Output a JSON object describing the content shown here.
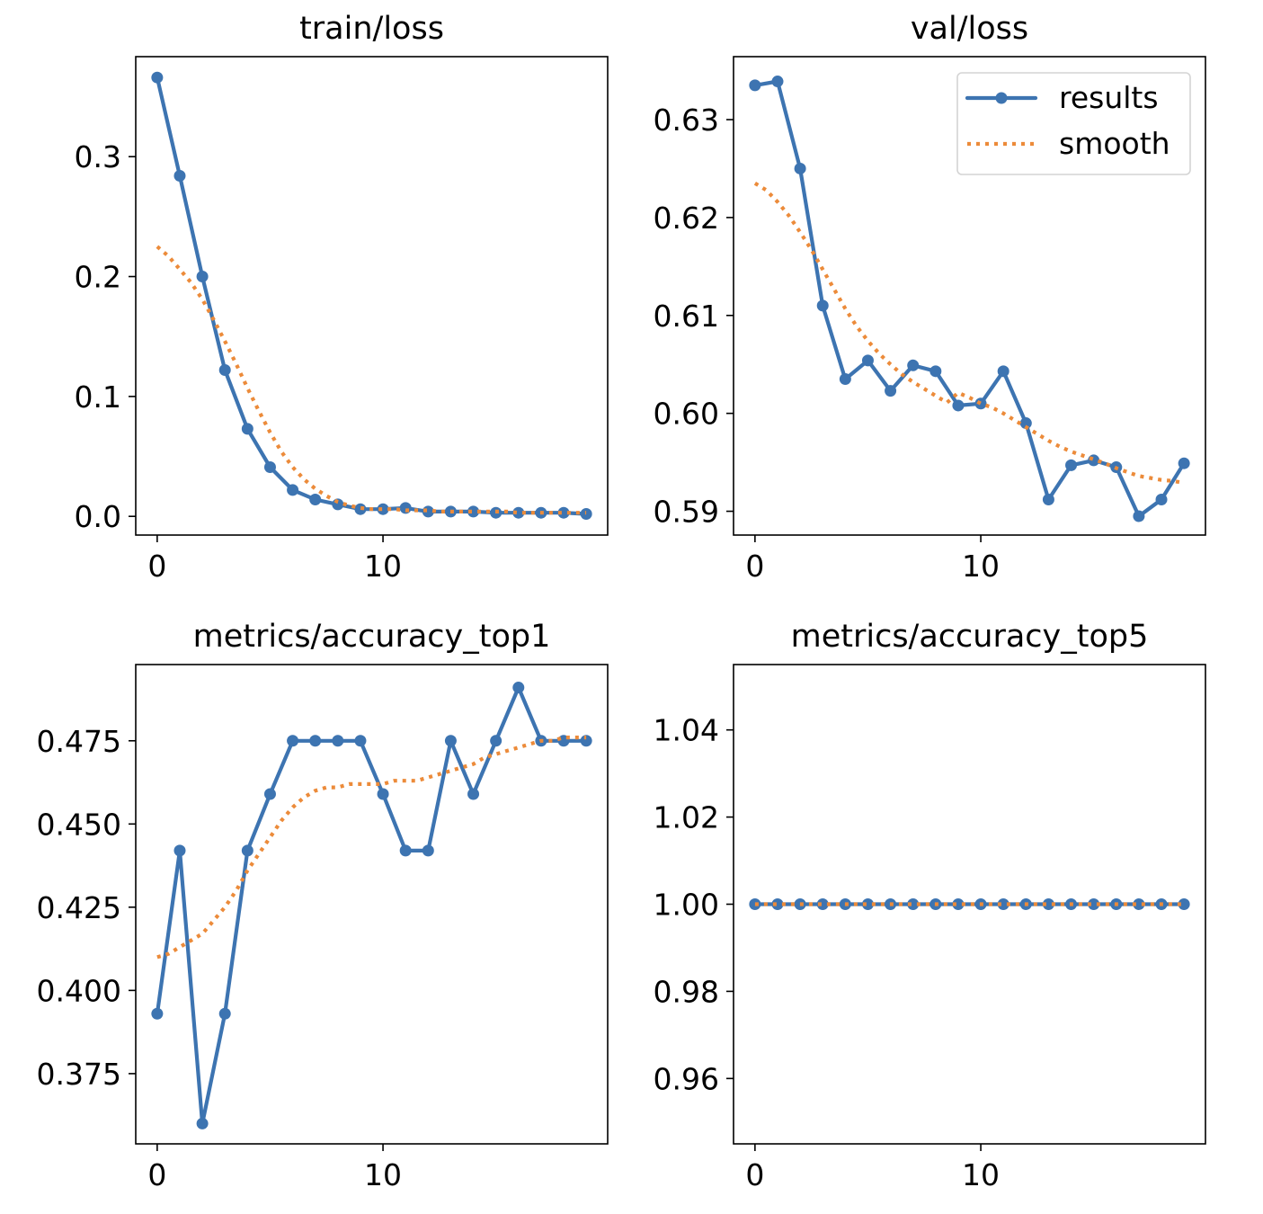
{
  "colors": {
    "results": "#3d74b1",
    "smooth": "#ec8b3a",
    "axis": "#000000",
    "background": "#ffffff"
  },
  "legend": {
    "results_label": "results",
    "smooth_label": "smooth",
    "placement": "top-right"
  },
  "chart_data": [
    {
      "type": "line",
      "title": "train/loss",
      "xlabel": "",
      "ylabel": "",
      "xlim": [
        -0.95,
        19.95
      ],
      "ylim": [
        -0.0156,
        0.3834
      ],
      "xticks": [
        0,
        10
      ],
      "xtick_labels": [
        "0",
        "10"
      ],
      "yticks": [
        0.0,
        0.1,
        0.2,
        0.3
      ],
      "ytick_labels": [
        "0.0",
        "0.1",
        "0.2",
        "0.3"
      ],
      "grid": false,
      "legend": false,
      "series": [
        {
          "name": "results",
          "x": [
            0,
            1,
            2,
            3,
            4,
            5,
            6,
            7,
            8,
            9,
            10,
            11,
            12,
            13,
            14,
            15,
            16,
            17,
            18,
            19
          ],
          "values": [
            0.366,
            0.284,
            0.2,
            0.122,
            0.073,
            0.041,
            0.022,
            0.014,
            0.01,
            0.006,
            0.006,
            0.007,
            0.004,
            0.004,
            0.004,
            0.003,
            0.003,
            0.003,
            0.003,
            0.002
          ]
        },
        {
          "name": "smooth",
          "x": [
            0,
            0.5,
            1,
            1.5,
            2,
            2.5,
            3,
            3.5,
            4,
            4.5,
            5,
            5.5,
            6,
            6.5,
            7,
            7.5,
            8,
            8.5,
            9,
            9.5,
            10,
            10.5,
            11,
            11.5,
            12,
            12.5,
            13,
            13.5,
            14,
            14.5,
            15,
            15.5,
            16,
            16.5,
            17,
            17.5,
            18,
            18.5,
            19
          ],
          "values": [
            0.225,
            0.217,
            0.206,
            0.195,
            0.181,
            0.164,
            0.146,
            0.127,
            0.107,
            0.088,
            0.07,
            0.054,
            0.041,
            0.031,
            0.023,
            0.017,
            0.012,
            0.009,
            0.007,
            0.006,
            0.006,
            0.006,
            0.005,
            0.005,
            0.005,
            0.004,
            0.004,
            0.004,
            0.004,
            0.004,
            0.004,
            0.004,
            0.003,
            0.003,
            0.003,
            0.003,
            0.003,
            0.003,
            0.003
          ]
        }
      ]
    },
    {
      "type": "line",
      "title": "val/loss",
      "xlabel": "",
      "ylabel": "",
      "xlim": [
        -0.95,
        19.95
      ],
      "ylim": [
        0.58757,
        0.63643
      ],
      "xticks": [
        0,
        10
      ],
      "xtick_labels": [
        "0",
        "10"
      ],
      "yticks": [
        0.59,
        0.6,
        0.61,
        0.62,
        0.63
      ],
      "ytick_labels": [
        "0.59",
        "0.60",
        "0.61",
        "0.62",
        "0.63"
      ],
      "grid": false,
      "legend": true,
      "series": [
        {
          "name": "results",
          "x": [
            0,
            1,
            2,
            3,
            4,
            5,
            6,
            7,
            8,
            9,
            10,
            11,
            12,
            13,
            14,
            15,
            16,
            17,
            18,
            19
          ],
          "values": [
            0.6335,
            0.6339,
            0.625,
            0.611,
            0.6035,
            0.6054,
            0.6023,
            0.6049,
            0.6043,
            0.6008,
            0.601,
            0.6043,
            0.599,
            0.5912,
            0.5947,
            0.5952,
            0.5945,
            0.5895,
            0.5912,
            0.5949
          ]
        },
        {
          "name": "smooth",
          "x": [
            0,
            0.5,
            1,
            1.5,
            2,
            2.5,
            3,
            3.5,
            4,
            4.5,
            5,
            5.5,
            6,
            6.5,
            7,
            7.5,
            8,
            8.5,
            9,
            9.5,
            10,
            10.5,
            11,
            11.5,
            12,
            12.5,
            13,
            13.5,
            14,
            14.5,
            15,
            15.5,
            16,
            16.5,
            17,
            17.5,
            18,
            18.5,
            19
          ],
          "values": [
            0.6235,
            0.6228,
            0.6216,
            0.6202,
            0.6185,
            0.6167,
            0.6147,
            0.6127,
            0.6107,
            0.6089,
            0.6074,
            0.6061,
            0.605,
            0.604,
            0.6032,
            0.6025,
            0.6018,
            0.6011,
            0.6021,
            0.6016,
            0.601,
            0.6006,
            0.6,
            0.5993,
            0.5986,
            0.5979,
            0.5972,
            0.5966,
            0.5961,
            0.5957,
            0.5953,
            0.5949,
            0.5944,
            0.594,
            0.5936,
            0.5934,
            0.5932,
            0.5931,
            0.5929
          ]
        }
      ]
    },
    {
      "type": "line",
      "title": "metrics/accuracy_top1",
      "xlabel": "",
      "ylabel": "",
      "xlim": [
        -0.95,
        19.95
      ],
      "ylim": [
        0.3539,
        0.4979
      ],
      "xticks": [
        0,
        10
      ],
      "xtick_labels": [
        "0",
        "10"
      ],
      "yticks": [
        0.375,
        0.4,
        0.425,
        0.45,
        0.475
      ],
      "ytick_labels": [
        "0.375",
        "0.400",
        "0.425",
        "0.450",
        "0.475"
      ],
      "grid": false,
      "legend": false,
      "series": [
        {
          "name": "results",
          "x": [
            0,
            1,
            2,
            3,
            4,
            5,
            6,
            7,
            8,
            9,
            10,
            11,
            12,
            13,
            14,
            15,
            16,
            17,
            18,
            19
          ],
          "values": [
            0.393,
            0.442,
            0.36,
            0.393,
            0.442,
            0.459,
            0.475,
            0.475,
            0.475,
            0.475,
            0.459,
            0.442,
            0.442,
            0.475,
            0.459,
            0.475,
            0.491,
            0.475,
            0.475,
            0.475
          ]
        },
        {
          "name": "smooth",
          "x": [
            0,
            0.5,
            1,
            1.5,
            2,
            2.5,
            3,
            3.5,
            4,
            4.5,
            5,
            5.5,
            6,
            6.5,
            7,
            7.5,
            8,
            8.5,
            9,
            9.5,
            10,
            10.5,
            11,
            11.5,
            12,
            12.5,
            13,
            13.5,
            14,
            14.5,
            15,
            15.5,
            16,
            16.5,
            17,
            17.5,
            18,
            18.5,
            19
          ],
          "values": [
            0.41,
            0.411,
            0.413,
            0.415,
            0.417,
            0.421,
            0.425,
            0.43,
            0.436,
            0.441,
            0.446,
            0.451,
            0.455,
            0.458,
            0.46,
            0.461,
            0.461,
            0.462,
            0.462,
            0.462,
            0.462,
            0.463,
            0.463,
            0.463,
            0.464,
            0.465,
            0.466,
            0.467,
            0.468,
            0.47,
            0.471,
            0.472,
            0.473,
            0.474,
            0.475,
            0.475,
            0.476,
            0.476,
            0.476
          ]
        }
      ]
    },
    {
      "type": "line",
      "title": "metrics/accuracy_top5",
      "xlabel": "",
      "ylabel": "",
      "xlim": [
        -0.95,
        19.95
      ],
      "ylim": [
        0.945,
        1.055
      ],
      "xticks": [
        0,
        10
      ],
      "xtick_labels": [
        "0",
        "10"
      ],
      "yticks": [
        0.96,
        0.98,
        1.0,
        1.02,
        1.04
      ],
      "ytick_labels": [
        "0.96",
        "0.98",
        "1.00",
        "1.02",
        "1.04"
      ],
      "grid": false,
      "legend": false,
      "series": [
        {
          "name": "results",
          "x": [
            0,
            1,
            2,
            3,
            4,
            5,
            6,
            7,
            8,
            9,
            10,
            11,
            12,
            13,
            14,
            15,
            16,
            17,
            18,
            19
          ],
          "values": [
            1,
            1,
            1,
            1,
            1,
            1,
            1,
            1,
            1,
            1,
            1,
            1,
            1,
            1,
            1,
            1,
            1,
            1,
            1,
            1
          ]
        },
        {
          "name": "smooth",
          "x": [
            0,
            19
          ],
          "values": [
            1,
            1
          ]
        }
      ]
    }
  ]
}
